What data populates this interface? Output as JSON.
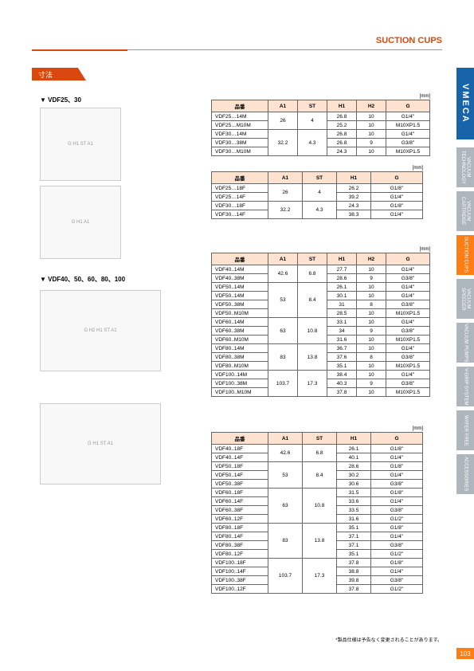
{
  "header": {
    "title": "SUCTION CUPS",
    "dimension": "寸法",
    "brand": "VMECA",
    "pageNum": "103"
  },
  "sideTabs": [
    {
      "label": "VACUUM TECHNOLOGY"
    },
    {
      "label": "VACUUM CARTRIDGE"
    },
    {
      "label": "SUCTION CUPS"
    },
    {
      "label": "VACUUM SPEEDER"
    },
    {
      "label": "VACUUM PUMPS"
    },
    {
      "label": "V-GRIP SYSTEM"
    },
    {
      "label": "WATER FREE"
    },
    {
      "label": "ACCESSORIES"
    }
  ],
  "section1": {
    "label": "▼ VDF25、30"
  },
  "section2": {
    "label": "▼ VDF40、50、60、80、100"
  },
  "unitLabel": "[mm]",
  "t1": {
    "headers": [
      "品番",
      "A1",
      "ST",
      "H1",
      "H2",
      "G"
    ],
    "rows": [
      [
        "VDF25…14M",
        "26",
        "4",
        "26.8",
        "10",
        "G1/4\""
      ],
      [
        "VDF25…M10M",
        "",
        "",
        "25.2",
        "10",
        "M10XP1.5"
      ],
      [
        "VDF30…14M",
        "32.2",
        "4.3",
        "26.8",
        "10",
        "G1/4\""
      ],
      [
        "VDF30…38M",
        "",
        "",
        "26.8",
        "9",
        "G3/8\""
      ],
      [
        "VDF30…M10M",
        "",
        "",
        "24.3",
        "10",
        "M10XP1.5"
      ]
    ],
    "spans": [
      [
        0,
        2
      ],
      [
        2,
        3
      ]
    ]
  },
  "t2": {
    "headers": [
      "品番",
      "A1",
      "ST",
      "H1",
      "G"
    ],
    "rows": [
      [
        "VDF25…18F",
        "26",
        "4",
        "26.2",
        "G1/8\""
      ],
      [
        "VDF25…14F",
        "",
        "",
        "39.2",
        "G1/4\""
      ],
      [
        "VDF30…18F",
        "32.2",
        "4.3",
        "24.3",
        "G1/8\""
      ],
      [
        "VDF30…14F",
        "",
        "",
        "38.3",
        "G1/4\""
      ]
    ],
    "spans": [
      [
        0,
        2
      ],
      [
        2,
        2
      ]
    ]
  },
  "t3": {
    "headers": [
      "品番",
      "A1",
      "ST",
      "H1",
      "H2",
      "G"
    ],
    "rows": [
      [
        "VDF40..14M",
        "42.6",
        "6.8",
        "27.7",
        "10",
        "G1/4\""
      ],
      [
        "VDF40..38M",
        "",
        "",
        "28.6",
        "9",
        "G3/8\""
      ],
      [
        "VDF50..14M",
        "53",
        "8.4",
        "26.1",
        "10",
        "G1/4\""
      ],
      [
        "VDF50..14M",
        "",
        "",
        "30.1",
        "10",
        "G1/4\""
      ],
      [
        "VDF50..38M",
        "",
        "",
        "31",
        "8",
        "G3/8\""
      ],
      [
        "VDF50..M10M",
        "",
        "",
        "28.5",
        "10",
        "M10XP1.5"
      ],
      [
        "VDF60..14M",
        "63",
        "10.8",
        "33.1",
        "10",
        "G1/4\""
      ],
      [
        "VDF60..38M",
        "",
        "",
        "34",
        "9",
        "G3/8\""
      ],
      [
        "VDF60..M10M",
        "",
        "",
        "31.6",
        "10",
        "M10XP1.5"
      ],
      [
        "VDF80..14M",
        "83",
        "13.8",
        "36.7",
        "10",
        "G1/4\""
      ],
      [
        "VDF80..38M",
        "",
        "",
        "37.6",
        "8",
        "G3/8\""
      ],
      [
        "VDF80..M10M",
        "",
        "",
        "35.1",
        "10",
        "M10XP1.5"
      ],
      [
        "VDF100..14M",
        "103.7",
        "17.3",
        "38.4",
        "10",
        "G1/4\""
      ],
      [
        "VDF100..38M",
        "",
        "",
        "40.3",
        "9",
        "G3/8\""
      ],
      [
        "VDF100..M10M",
        "",
        "",
        "37.8",
        "10",
        "M10XP1.5"
      ]
    ],
    "spans": [
      [
        0,
        2
      ],
      [
        2,
        4
      ],
      [
        6,
        3
      ],
      [
        9,
        3
      ],
      [
        12,
        3
      ]
    ]
  },
  "t4": {
    "headers": [
      "品番",
      "A1",
      "ST",
      "H1",
      "G"
    ],
    "rows": [
      [
        "VDF40..18F",
        "42.6",
        "6.8",
        "26.1",
        "G1/8\""
      ],
      [
        "VDF40..14F",
        "",
        "",
        "40.1",
        "G1/4\""
      ],
      [
        "VDF50..18F",
        "53",
        "8.4",
        "28.6",
        "G1/8\""
      ],
      [
        "VDF50..14F",
        "",
        "",
        "30.2",
        "G1/4\""
      ],
      [
        "VDF50..38F",
        "",
        "",
        "30.6",
        "G3/8\""
      ],
      [
        "VDF60..18F",
        "63",
        "10.8",
        "31.5",
        "G1/8\""
      ],
      [
        "VDF60..14F",
        "",
        "",
        "33.6",
        "G1/4\""
      ],
      [
        "VDF60..38F",
        "",
        "",
        "33.5",
        "G3/8\""
      ],
      [
        "VDF60..12F",
        "",
        "",
        "31.6",
        "G1/2\""
      ],
      [
        "VDF80..18F",
        "83",
        "13.8",
        "35.1",
        "G1/8\""
      ],
      [
        "VDF80..14F",
        "",
        "",
        "37.1",
        "G1/4\""
      ],
      [
        "VDF80..38F",
        "",
        "",
        "37.1",
        "G3/8\""
      ],
      [
        "VDF80..12F",
        "",
        "",
        "35.1",
        "G1/2\""
      ],
      [
        "VDF100..18F",
        "103.7",
        "17.3",
        "37.8",
        "G1/8\""
      ],
      [
        "VDF100..14F",
        "",
        "",
        "38.8",
        "G1/4\""
      ],
      [
        "VDF100..38F",
        "",
        "",
        "39.8",
        "G3/8\""
      ],
      [
        "VDF100..12F",
        "",
        "",
        "37.8",
        "G1/2\""
      ]
    ],
    "spans": [
      [
        0,
        2
      ],
      [
        2,
        3
      ],
      [
        5,
        4
      ],
      [
        9,
        4
      ],
      [
        13,
        4
      ]
    ]
  },
  "footnote": "*製品仕様は予告なく変更されることがあります。"
}
